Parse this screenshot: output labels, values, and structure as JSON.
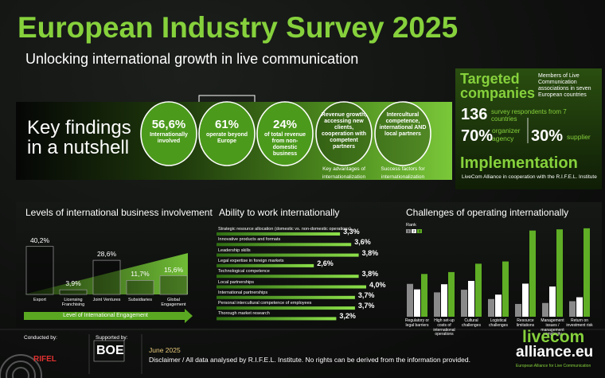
{
  "header": {
    "title": "European Industry Survey 2025",
    "subtitle": "Unlocking international growth in live communication"
  },
  "key_findings": {
    "heading": "Key findings in a nutshell",
    "items": [
      {
        "value": "56,6%",
        "text": "Internationally involved"
      },
      {
        "value": "61%",
        "text": "operate beyond Europe"
      },
      {
        "value": "24%",
        "text": "of total revenue from non-domestic business"
      },
      {
        "text": "Revenue growth, accessing new clients, cooperation with competent partners",
        "caption": "Key advantages of internationalization"
      },
      {
        "text": "Intercultural competence, international AND local partners",
        "caption": "Success factors for internationalization"
      }
    ]
  },
  "targeted": {
    "title": "Targeted companies",
    "description": "Members of Live Communication associations in seven European countries",
    "respondents": "136",
    "respondents_text": "survey respondents from 7 countries",
    "organizer": "70%",
    "organizer_text": "organizer agency",
    "supplier": "30%",
    "supplier_text": "supplier"
  },
  "implementation": {
    "title": "Implementation",
    "text": "LiveCom Alliance in cooperation with the R.I.F.E.L. Institute"
  },
  "chart_data": [
    {
      "type": "bar",
      "title": "Levels of international business involvement",
      "categories": [
        "Export",
        "Licensing Franchising",
        "Joint Ventures",
        "Subsidiaries",
        "Global Engagement"
      ],
      "values": [
        40.2,
        3.9,
        28.6,
        11.7,
        15.6
      ],
      "value_labels": [
        "40,2%",
        "3,9%",
        "28,6%",
        "11,7%",
        "15,6%"
      ],
      "annotation": "Level of International Engagement"
    },
    {
      "type": "hbar",
      "title": "Ability to work internationally",
      "color": "#6cc62a",
      "categories": [
        "Strategic resource allocation (domestic vs. non-domestic operations)",
        "Innovative products and formats",
        "Leadership skills",
        "Legal expertise in foreign markets",
        "Technological competence",
        "Local partnerships",
        "International partnerships",
        "Personal intercultural competence of employees",
        "Thorough market research"
      ],
      "values": [
        3.3,
        3.6,
        3.8,
        2.6,
        3.8,
        4.0,
        3.7,
        3.7,
        3.2
      ],
      "value_labels": [
        "3,3%",
        "3,6%",
        "3,8%",
        "2,6%",
        "3,8%",
        "4,0%",
        "3,7%",
        "3,7%",
        "3,2%"
      ]
    },
    {
      "type": "grouped",
      "title": "Challenges of operating internationally",
      "legend_title": "Rank",
      "categories": [
        "Regulatory or legal barriers",
        "High set-up costs of international operations",
        "Cultural challenges",
        "Logistical challenges",
        "Resource limitations",
        "Management issues / management complexity",
        "Return on investment risk"
      ],
      "series": [
        {
          "name": "1",
          "color": "#8a8a8a",
          "values": [
            27.5,
            20.4,
            22.6,
            14.8,
            10.7,
            11.5,
            13.0
          ]
        },
        {
          "name": "2",
          "color": "#ffffff",
          "values": [
            22.9,
            27.2,
            30.0,
            18.5,
            27.7,
            25.3,
            16.3
          ]
        },
        {
          "name": "3",
          "color": "#5fae25",
          "values": [
            35.8,
            37.4,
            44.4,
            46.3,
            72.2,
            73.2,
            74.1
          ]
        }
      ]
    }
  ],
  "footer": {
    "conducted_by": "Conducted by:",
    "conducted_logo": "RIFEL",
    "supported_by": "Supported by:",
    "supported_logo": "BOE",
    "date": "June 2025",
    "disclaimer": "Disclaimer / All data analysed by R.I.F.E.L. Institute. No rights can be derived from the information provided.",
    "brand_top": "livecom",
    "brand_bottom": "alliance.eu",
    "brand_tagline": "European Alliance for Live Communication"
  }
}
